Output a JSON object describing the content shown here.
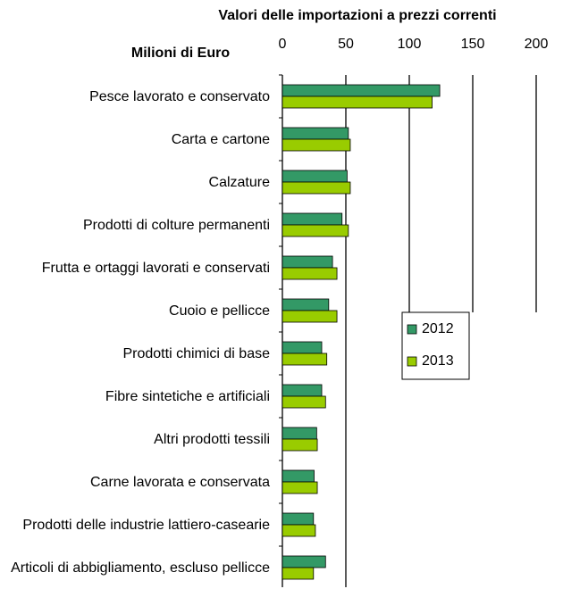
{
  "chart_data": {
    "type": "barh",
    "title": "Valori delle importazioni a prezzi correnti",
    "x_label": "Milioni di Euro",
    "categories": [
      "Pesce lavorato e conservato",
      "Carta e cartone",
      "Calzature",
      "Prodotti di colture permanenti",
      "Frutta e ortaggi lavorati e conservati",
      "Cuoio e pellicce",
      "Prodotti chimici di base",
      "Fibre sintetiche e artificiali",
      "Altri prodotti tessili",
      "Carne lavorata e conservata",
      "Prodotti delle industrie lattiero-casearie",
      "Articoli di abbigliamento, escluso pellicce"
    ],
    "series": [
      {
        "name": "2012",
        "color": "#339966",
        "values": [
          124,
          52,
          51,
          47,
          39.5,
          36.5,
          31,
          31,
          27,
          25,
          24.5,
          34
        ]
      },
      {
        "name": "2013",
        "color": "#99cc00",
        "values": [
          118,
          53.5,
          53.5,
          52,
          43,
          43,
          35,
          34,
          27.5,
          27.5,
          26,
          24.5
        ]
      }
    ],
    "xlim": [
      0,
      200
    ],
    "xticks": [
      0,
      50,
      100,
      150,
      200
    ],
    "grid": true,
    "legend": "center-right"
  }
}
